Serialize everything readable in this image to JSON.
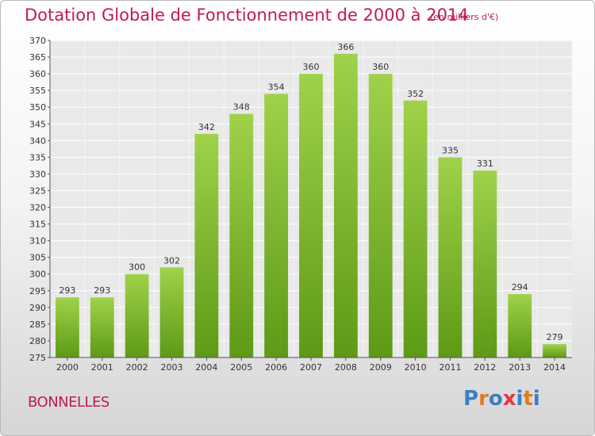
{
  "title": "Dotation Globale de Fonctionnement de 2000 à 2014",
  "subtitle": "(en milliers d'€)",
  "commune": "BONNELLES",
  "logo": {
    "text": "Proxiti",
    "colors": [
      "#3a7fc4",
      "#e07b1d",
      "#3a7fc4",
      "#e03a3a",
      "#3a7fc4",
      "#e07b1d",
      "#3a7fc4"
    ]
  },
  "colors": {
    "bar_top": "#9fd24a",
    "bar_bottom": "#5e9a16",
    "grid": "#ffffff",
    "plot_bg": "#e9e9e9",
    "accent": "#c2185b"
  },
  "chart_data": {
    "type": "bar",
    "categories": [
      "2000",
      "2001",
      "2002",
      "2003",
      "2004",
      "2005",
      "2006",
      "2007",
      "2008",
      "2009",
      "2010",
      "2011",
      "2012",
      "2013",
      "2014"
    ],
    "values": [
      293,
      293,
      300,
      302,
      342,
      348,
      354,
      360,
      366,
      360,
      352,
      335,
      331,
      294,
      279
    ],
    "ylim": [
      275,
      370
    ],
    "yticks": [
      275,
      280,
      285,
      290,
      295,
      300,
      305,
      310,
      315,
      320,
      325,
      330,
      335,
      340,
      345,
      350,
      355,
      360,
      365,
      370
    ],
    "grid": true,
    "data_labels": true
  }
}
